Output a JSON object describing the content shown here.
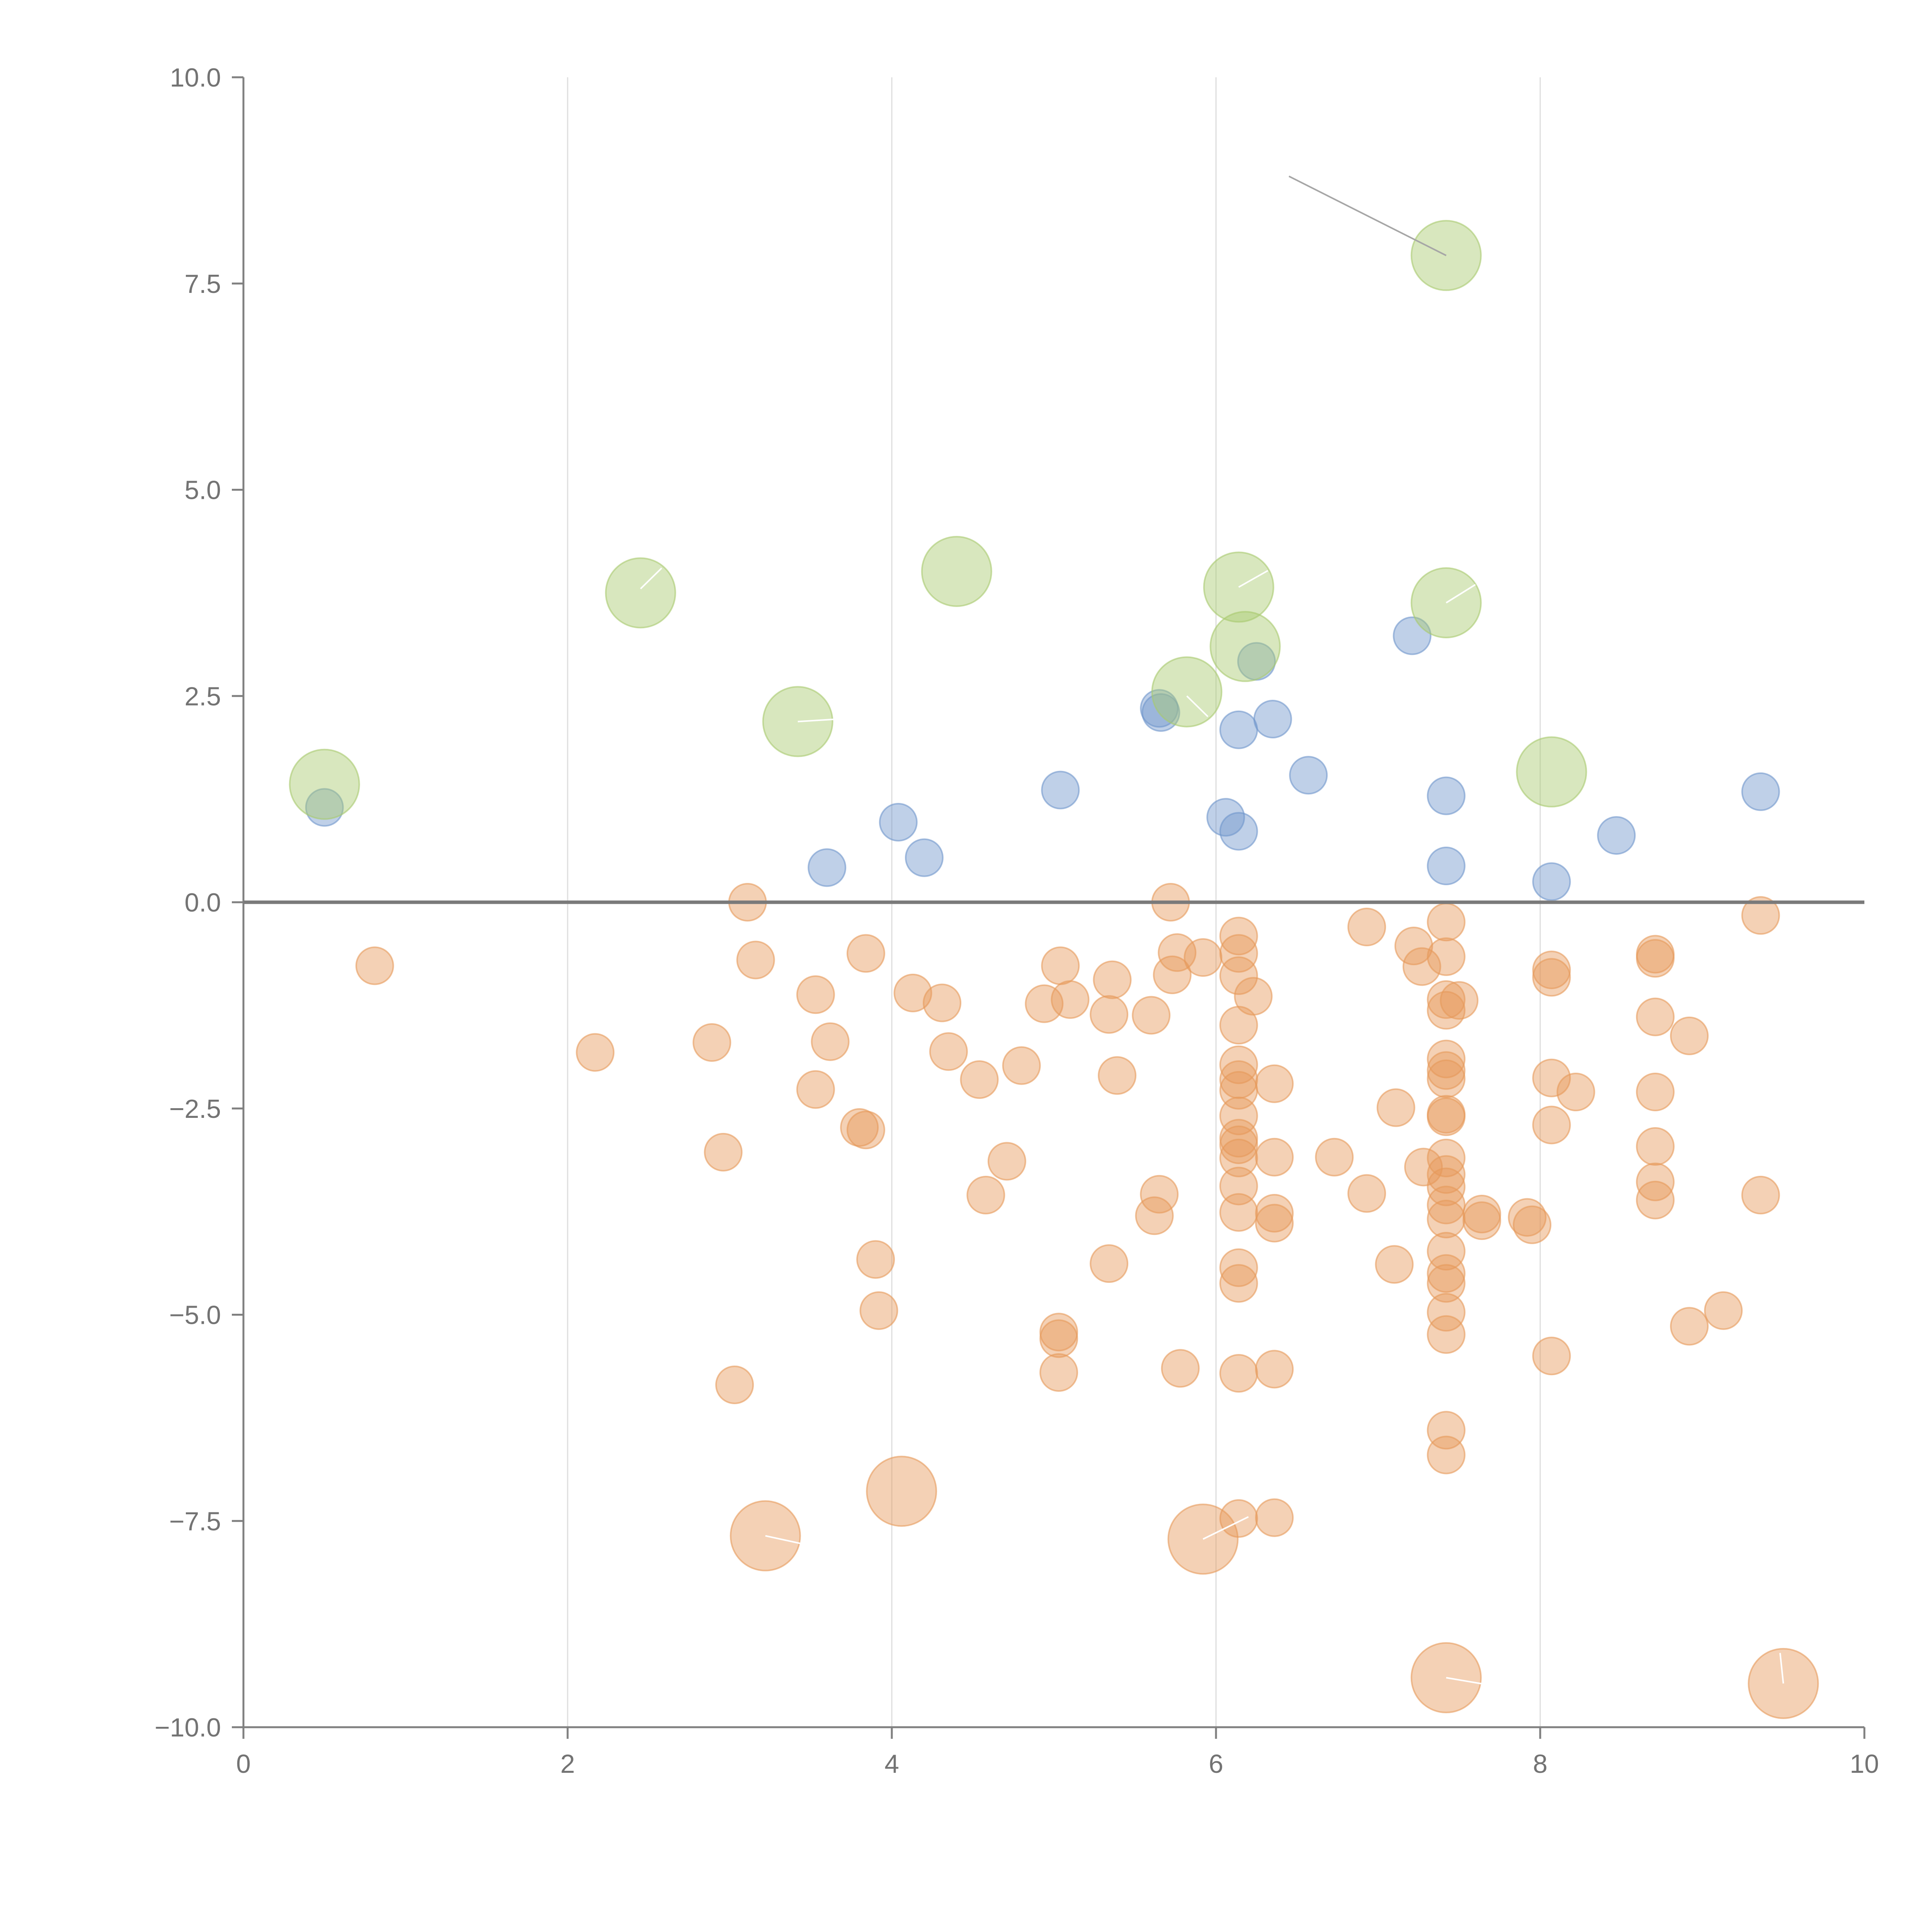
{
  "chart_data": {
    "type": "scatter",
    "title": "",
    "xlabel": "",
    "ylabel": "",
    "xlim": [
      0,
      10
    ],
    "ylim": [
      -10,
      10
    ],
    "x_ticks": [
      0,
      2,
      4,
      6,
      8,
      10
    ],
    "x_tick_labels": [
      "0",
      "2",
      "4",
      "6",
      "8",
      "10"
    ],
    "y_ticks": [
      -10,
      -7.5,
      -5,
      -2.5,
      0,
      2.5,
      5,
      7.5,
      10
    ],
    "y_tick_labels": [
      "−10.0",
      "−7.5",
      "−5.0",
      "−2.5",
      "0.0",
      "2.5",
      "5.0",
      "7.5",
      "10.0"
    ],
    "vertical_gridlines": [
      2,
      4,
      6,
      8
    ],
    "zero_line": 0,
    "colors": {
      "blue": "#7096cc",
      "green": "#a9c96e",
      "orange": "#e69a5a",
      "leader_dark": "#a6a6a6",
      "leader_light": "#ffffff"
    },
    "series": [
      {
        "name": "blue",
        "color": "#7096cc",
        "size": 1,
        "points": [
          [
            0.5,
            1.15
          ],
          [
            3.6,
            0.42
          ],
          [
            4.04,
            0.97
          ],
          [
            4.2,
            0.54
          ],
          [
            5.04,
            1.36
          ],
          [
            5.65,
            2.35
          ],
          [
            5.66,
            2.3
          ],
          [
            6.06,
            1.03
          ],
          [
            6.14,
            0.86
          ],
          [
            6.14,
            2.09
          ],
          [
            6.25,
            2.92
          ],
          [
            6.35,
            2.22
          ],
          [
            6.57,
            1.54
          ],
          [
            7.21,
            3.23
          ],
          [
            7.42,
            1.29
          ],
          [
            7.42,
            0.44
          ],
          [
            8.07,
            0.25
          ],
          [
            8.47,
            0.81
          ],
          [
            9.36,
            1.34
          ]
        ]
      },
      {
        "name": "green",
        "color": "#a9c96e",
        "size": 2,
        "points": [
          [
            0.5,
            1.43
          ],
          [
            2.45,
            3.75
          ],
          [
            3.42,
            2.19
          ],
          [
            4.4,
            4.01
          ],
          [
            5.82,
            2.55
          ],
          [
            6.14,
            3.82
          ],
          [
            6.18,
            3.1
          ],
          [
            7.42,
            3.63
          ],
          [
            7.42,
            7.84
          ],
          [
            8.07,
            1.58
          ]
        ]
      },
      {
        "name": "orange",
        "color": "#e69a5a",
        "size": 1,
        "points": [
          [
            0.81,
            -0.77
          ],
          [
            2.17,
            -1.82
          ],
          [
            2.89,
            -1.7
          ],
          [
            2.96,
            -3.03
          ],
          [
            3.03,
            -5.85
          ],
          [
            3.11,
            0.0
          ],
          [
            3.16,
            -0.7
          ],
          [
            3.53,
            -1.12
          ],
          [
            3.53,
            -2.27
          ],
          [
            3.62,
            -1.69
          ],
          [
            3.8,
            -2.73
          ],
          [
            3.84,
            -0.62
          ],
          [
            3.84,
            -2.76
          ],
          [
            3.9,
            -4.33
          ],
          [
            3.92,
            -4.95
          ],
          [
            4.13,
            -1.1
          ],
          [
            4.31,
            -1.22
          ],
          [
            4.35,
            -1.81
          ],
          [
            4.54,
            -2.15
          ],
          [
            4.58,
            -3.55
          ],
          [
            4.71,
            -3.14
          ],
          [
            4.8,
            -1.98
          ],
          [
            4.94,
            -1.23
          ],
          [
            5.03,
            -5.21
          ],
          [
            5.03,
            -5.29
          ],
          [
            5.03,
            -5.7
          ],
          [
            5.04,
            -0.77
          ],
          [
            5.1,
            -1.18
          ],
          [
            5.34,
            -4.38
          ],
          [
            5.34,
            -1.36
          ],
          [
            5.36,
            -0.94
          ],
          [
            5.39,
            -2.1
          ],
          [
            5.6,
            -1.37
          ],
          [
            5.62,
            -3.8
          ],
          [
            5.65,
            -3.54
          ],
          [
            5.72,
            0.0
          ],
          [
            5.73,
            -0.88
          ],
          [
            5.76,
            -0.61
          ],
          [
            5.78,
            -5.65
          ],
          [
            5.92,
            -0.67
          ],
          [
            6.14,
            -0.41
          ],
          [
            6.14,
            -0.62
          ],
          [
            6.14,
            -0.89
          ],
          [
            6.14,
            -1.49
          ],
          [
            6.14,
            -1.97
          ],
          [
            6.14,
            -2.15
          ],
          [
            6.14,
            -2.28
          ],
          [
            6.14,
            -2.59
          ],
          [
            6.14,
            -2.86
          ],
          [
            6.14,
            -2.94
          ],
          [
            6.14,
            -3.1
          ],
          [
            6.14,
            -3.44
          ],
          [
            6.14,
            -3.76
          ],
          [
            6.14,
            -4.43
          ],
          [
            6.14,
            -4.62
          ],
          [
            6.14,
            -5.71
          ],
          [
            6.14,
            -7.47
          ],
          [
            6.23,
            -1.14
          ],
          [
            6.36,
            -2.2
          ],
          [
            6.36,
            -3.09
          ],
          [
            6.36,
            -3.77
          ],
          [
            6.36,
            -3.89
          ],
          [
            6.36,
            -5.66
          ],
          [
            6.36,
            -7.46
          ],
          [
            6.73,
            -3.09
          ],
          [
            6.93,
            -0.3
          ],
          [
            6.93,
            -3.53
          ],
          [
            7.1,
            -4.39
          ],
          [
            7.11,
            -2.49
          ],
          [
            7.22,
            -0.53
          ],
          [
            7.27,
            -0.78
          ],
          [
            7.28,
            -3.21
          ],
          [
            7.42,
            -0.24
          ],
          [
            7.42,
            -0.66
          ],
          [
            7.42,
            -1.18
          ],
          [
            7.42,
            -1.31
          ],
          [
            7.42,
            -1.9
          ],
          [
            7.42,
            -2.04
          ],
          [
            7.42,
            -2.14
          ],
          [
            7.42,
            -2.57
          ],
          [
            7.42,
            -2.6
          ],
          [
            7.42,
            -3.1
          ],
          [
            7.42,
            -3.3
          ],
          [
            7.42,
            -3.45
          ],
          [
            7.42,
            -3.67
          ],
          [
            7.42,
            -3.84
          ],
          [
            7.42,
            -4.23
          ],
          [
            7.42,
            -4.5
          ],
          [
            7.42,
            -4.62
          ],
          [
            7.42,
            -4.97
          ],
          [
            7.42,
            -5.24
          ],
          [
            7.42,
            -6.4
          ],
          [
            7.42,
            -6.7
          ],
          [
            7.5,
            -1.19
          ],
          [
            7.64,
            -3.78
          ],
          [
            7.64,
            -3.86
          ],
          [
            7.92,
            -3.82
          ],
          [
            7.95,
            -3.91
          ],
          [
            8.07,
            -0.82
          ],
          [
            8.07,
            -0.91
          ],
          [
            8.07,
            -2.13
          ],
          [
            8.07,
            -2.7
          ],
          [
            8.07,
            -5.5
          ],
          [
            8.22,
            -2.3
          ],
          [
            8.71,
            -0.63
          ],
          [
            8.71,
            -0.68
          ],
          [
            8.71,
            -1.39
          ],
          [
            8.71,
            -2.3
          ],
          [
            8.71,
            -2.96
          ],
          [
            8.71,
            -3.39
          ],
          [
            8.71,
            -3.61
          ],
          [
            8.92,
            -1.62
          ],
          [
            8.92,
            -5.14
          ],
          [
            9.13,
            -4.95
          ],
          [
            9.36,
            -0.16
          ],
          [
            9.36,
            -3.55
          ]
        ]
      },
      {
        "name": "orange-large",
        "color": "#e69a5a",
        "size": 2,
        "points": [
          [
            3.22,
            -7.68
          ],
          [
            4.06,
            -7.14
          ],
          [
            5.92,
            -7.72
          ],
          [
            7.42,
            -9.4
          ],
          [
            9.5,
            -9.47
          ]
        ]
      }
    ]
  }
}
